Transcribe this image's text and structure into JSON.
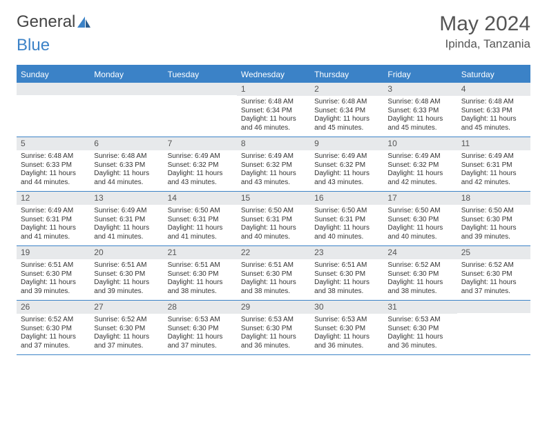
{
  "brand": {
    "part1": "General",
    "part2": "Blue"
  },
  "title": "May 2024",
  "location": "Ipinda, Tanzania",
  "colors": {
    "accent": "#3b82c7",
    "header_bg": "#3b82c7",
    "daynum_bg": "#e7e9eb",
    "text": "#333333",
    "title_text": "#555555",
    "page_bg": "#ffffff"
  },
  "weekdays": [
    "Sunday",
    "Monday",
    "Tuesday",
    "Wednesday",
    "Thursday",
    "Friday",
    "Saturday"
  ],
  "weeks": [
    [
      {
        "n": "",
        "sr": "",
        "ss": "",
        "dl": ""
      },
      {
        "n": "",
        "sr": "",
        "ss": "",
        "dl": ""
      },
      {
        "n": "",
        "sr": "",
        "ss": "",
        "dl": ""
      },
      {
        "n": "1",
        "sr": "Sunrise: 6:48 AM",
        "ss": "Sunset: 6:34 PM",
        "dl": "Daylight: 11 hours and 46 minutes."
      },
      {
        "n": "2",
        "sr": "Sunrise: 6:48 AM",
        "ss": "Sunset: 6:34 PM",
        "dl": "Daylight: 11 hours and 45 minutes."
      },
      {
        "n": "3",
        "sr": "Sunrise: 6:48 AM",
        "ss": "Sunset: 6:33 PM",
        "dl": "Daylight: 11 hours and 45 minutes."
      },
      {
        "n": "4",
        "sr": "Sunrise: 6:48 AM",
        "ss": "Sunset: 6:33 PM",
        "dl": "Daylight: 11 hours and 45 minutes."
      }
    ],
    [
      {
        "n": "5",
        "sr": "Sunrise: 6:48 AM",
        "ss": "Sunset: 6:33 PM",
        "dl": "Daylight: 11 hours and 44 minutes."
      },
      {
        "n": "6",
        "sr": "Sunrise: 6:48 AM",
        "ss": "Sunset: 6:33 PM",
        "dl": "Daylight: 11 hours and 44 minutes."
      },
      {
        "n": "7",
        "sr": "Sunrise: 6:49 AM",
        "ss": "Sunset: 6:32 PM",
        "dl": "Daylight: 11 hours and 43 minutes."
      },
      {
        "n": "8",
        "sr": "Sunrise: 6:49 AM",
        "ss": "Sunset: 6:32 PM",
        "dl": "Daylight: 11 hours and 43 minutes."
      },
      {
        "n": "9",
        "sr": "Sunrise: 6:49 AM",
        "ss": "Sunset: 6:32 PM",
        "dl": "Daylight: 11 hours and 43 minutes."
      },
      {
        "n": "10",
        "sr": "Sunrise: 6:49 AM",
        "ss": "Sunset: 6:32 PM",
        "dl": "Daylight: 11 hours and 42 minutes."
      },
      {
        "n": "11",
        "sr": "Sunrise: 6:49 AM",
        "ss": "Sunset: 6:31 PM",
        "dl": "Daylight: 11 hours and 42 minutes."
      }
    ],
    [
      {
        "n": "12",
        "sr": "Sunrise: 6:49 AM",
        "ss": "Sunset: 6:31 PM",
        "dl": "Daylight: 11 hours and 41 minutes."
      },
      {
        "n": "13",
        "sr": "Sunrise: 6:49 AM",
        "ss": "Sunset: 6:31 PM",
        "dl": "Daylight: 11 hours and 41 minutes."
      },
      {
        "n": "14",
        "sr": "Sunrise: 6:50 AM",
        "ss": "Sunset: 6:31 PM",
        "dl": "Daylight: 11 hours and 41 minutes."
      },
      {
        "n": "15",
        "sr": "Sunrise: 6:50 AM",
        "ss": "Sunset: 6:31 PM",
        "dl": "Daylight: 11 hours and 40 minutes."
      },
      {
        "n": "16",
        "sr": "Sunrise: 6:50 AM",
        "ss": "Sunset: 6:31 PM",
        "dl": "Daylight: 11 hours and 40 minutes."
      },
      {
        "n": "17",
        "sr": "Sunrise: 6:50 AM",
        "ss": "Sunset: 6:30 PM",
        "dl": "Daylight: 11 hours and 40 minutes."
      },
      {
        "n": "18",
        "sr": "Sunrise: 6:50 AM",
        "ss": "Sunset: 6:30 PM",
        "dl": "Daylight: 11 hours and 39 minutes."
      }
    ],
    [
      {
        "n": "19",
        "sr": "Sunrise: 6:51 AM",
        "ss": "Sunset: 6:30 PM",
        "dl": "Daylight: 11 hours and 39 minutes."
      },
      {
        "n": "20",
        "sr": "Sunrise: 6:51 AM",
        "ss": "Sunset: 6:30 PM",
        "dl": "Daylight: 11 hours and 39 minutes."
      },
      {
        "n": "21",
        "sr": "Sunrise: 6:51 AM",
        "ss": "Sunset: 6:30 PM",
        "dl": "Daylight: 11 hours and 38 minutes."
      },
      {
        "n": "22",
        "sr": "Sunrise: 6:51 AM",
        "ss": "Sunset: 6:30 PM",
        "dl": "Daylight: 11 hours and 38 minutes."
      },
      {
        "n": "23",
        "sr": "Sunrise: 6:51 AM",
        "ss": "Sunset: 6:30 PM",
        "dl": "Daylight: 11 hours and 38 minutes."
      },
      {
        "n": "24",
        "sr": "Sunrise: 6:52 AM",
        "ss": "Sunset: 6:30 PM",
        "dl": "Daylight: 11 hours and 38 minutes."
      },
      {
        "n": "25",
        "sr": "Sunrise: 6:52 AM",
        "ss": "Sunset: 6:30 PM",
        "dl": "Daylight: 11 hours and 37 minutes."
      }
    ],
    [
      {
        "n": "26",
        "sr": "Sunrise: 6:52 AM",
        "ss": "Sunset: 6:30 PM",
        "dl": "Daylight: 11 hours and 37 minutes."
      },
      {
        "n": "27",
        "sr": "Sunrise: 6:52 AM",
        "ss": "Sunset: 6:30 PM",
        "dl": "Daylight: 11 hours and 37 minutes."
      },
      {
        "n": "28",
        "sr": "Sunrise: 6:53 AM",
        "ss": "Sunset: 6:30 PM",
        "dl": "Daylight: 11 hours and 37 minutes."
      },
      {
        "n": "29",
        "sr": "Sunrise: 6:53 AM",
        "ss": "Sunset: 6:30 PM",
        "dl": "Daylight: 11 hours and 36 minutes."
      },
      {
        "n": "30",
        "sr": "Sunrise: 6:53 AM",
        "ss": "Sunset: 6:30 PM",
        "dl": "Daylight: 11 hours and 36 minutes."
      },
      {
        "n": "31",
        "sr": "Sunrise: 6:53 AM",
        "ss": "Sunset: 6:30 PM",
        "dl": "Daylight: 11 hours and 36 minutes."
      },
      {
        "n": "",
        "sr": "",
        "ss": "",
        "dl": ""
      }
    ]
  ]
}
